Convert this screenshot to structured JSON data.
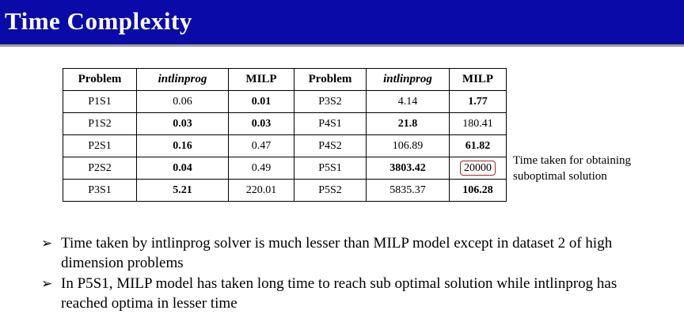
{
  "title": "Time Complexity",
  "table": {
    "headers": [
      "Problem",
      "intlinprog",
      "MILP",
      "Problem",
      "intlinprog",
      "MILP"
    ],
    "rows": [
      [
        {
          "v": "P1S1"
        },
        {
          "v": "0.06"
        },
        {
          "v": "0.01",
          "b": true
        },
        {
          "v": "P3S2"
        },
        {
          "v": "4.14"
        },
        {
          "v": "1.77",
          "b": true
        }
      ],
      [
        {
          "v": "P1S2"
        },
        {
          "v": "0.03",
          "b": true
        },
        {
          "v": "0.03",
          "b": true
        },
        {
          "v": "P4S1"
        },
        {
          "v": "21.8",
          "b": true
        },
        {
          "v": "180.41"
        }
      ],
      [
        {
          "v": "P2S1"
        },
        {
          "v": "0.16",
          "b": true
        },
        {
          "v": "0.47"
        },
        {
          "v": "P4S2"
        },
        {
          "v": "106.89"
        },
        {
          "v": "61.82",
          "b": true
        }
      ],
      [
        {
          "v": "P2S2"
        },
        {
          "v": "0.04",
          "b": true
        },
        {
          "v": "0.49"
        },
        {
          "v": "P5S1"
        },
        {
          "v": "3803.42",
          "b": true
        },
        {
          "v": "20000",
          "circled": true
        }
      ],
      [
        {
          "v": "P3S1"
        },
        {
          "v": "5.21",
          "b": true
        },
        {
          "v": "220.01"
        },
        {
          "v": "P5S2"
        },
        {
          "v": "5835.37"
        },
        {
          "v": "106.28",
          "b": true
        }
      ]
    ]
  },
  "note": "Time taken for obtaining suboptimal solution",
  "bullets": [
    "Time taken by intlinprog solver is much lesser than MILP model except in dataset 2 of high dimension problems",
    "In P5S1, MILP model has taken long time to reach sub optimal solution while intlinprog has reached optima in lesser time"
  ],
  "bullet_glyph": "➢"
}
